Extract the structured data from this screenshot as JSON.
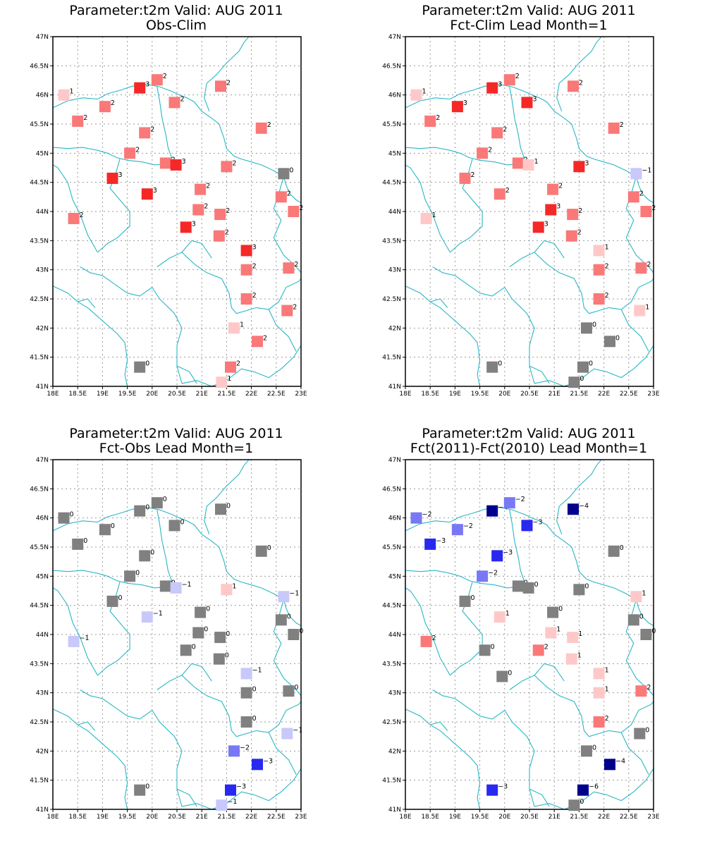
{
  "figure_title_common": "Parameter:t2m Valid: AUG 2011",
  "colors": {
    "neutral": "#808080",
    "coast": "#2ab7c4",
    "gridline": "#9a9a9a",
    "pos1": "#ffc8c8",
    "pos2": "#fa7878",
    "pos3": "#f52828",
    "neg1": "#c8c8fa",
    "neg2": "#7878f5",
    "neg3": "#2828f0",
    "neg4": "#00008c"
  },
  "axes": {
    "lon_ticks": [
      "18E",
      "18.5E",
      "19E",
      "19.5E",
      "20E",
      "20.5E",
      "21E",
      "21.5E",
      "22E",
      "22.5E",
      "23E"
    ],
    "lat_ticks": [
      "41N",
      "41.5N",
      "42N",
      "42.5N",
      "43N",
      "43.5N",
      "44N",
      "44.5N",
      "45N",
      "45.5N",
      "46N",
      "46.5N",
      "47N"
    ],
    "lon_range": [
      18,
      23
    ],
    "lat_range": [
      41,
      47
    ]
  },
  "panels": [
    {
      "title": "Parameter:t2m Valid: AUG 2011",
      "subtitle": "Obs-Clim",
      "stations": [
        {
          "lon": 18.22,
          "lat": 46.0,
          "v": "1"
        },
        {
          "lon": 19.75,
          "lat": 46.12,
          "v": "3"
        },
        {
          "lon": 20.1,
          "lat": 46.26,
          "v": "2"
        },
        {
          "lon": 21.38,
          "lat": 46.15,
          "v": "2"
        },
        {
          "lon": 19.05,
          "lat": 45.8,
          "v": "2"
        },
        {
          "lon": 20.45,
          "lat": 45.87,
          "v": "2"
        },
        {
          "lon": 18.5,
          "lat": 45.55,
          "v": "2"
        },
        {
          "lon": 19.85,
          "lat": 45.35,
          "v": "2"
        },
        {
          "lon": 22.2,
          "lat": 45.43,
          "v": "2"
        },
        {
          "lon": 19.55,
          "lat": 45.0,
          "v": "2"
        },
        {
          "lon": 20.27,
          "lat": 44.83,
          "v": "2"
        },
        {
          "lon": 20.48,
          "lat": 44.8,
          "v": "3"
        },
        {
          "lon": 21.5,
          "lat": 44.77,
          "v": "2"
        },
        {
          "lon": 22.65,
          "lat": 44.65,
          "v": "0"
        },
        {
          "lon": 19.2,
          "lat": 44.57,
          "v": "3"
        },
        {
          "lon": 19.9,
          "lat": 44.3,
          "v": "3"
        },
        {
          "lon": 20.97,
          "lat": 44.38,
          "v": "2"
        },
        {
          "lon": 22.6,
          "lat": 44.25,
          "v": "2"
        },
        {
          "lon": 20.93,
          "lat": 44.03,
          "v": "2"
        },
        {
          "lon": 21.37,
          "lat": 43.95,
          "v": "2"
        },
        {
          "lon": 22.85,
          "lat": 44.0,
          "v": "2"
        },
        {
          "lon": 18.42,
          "lat": 43.88,
          "v": "2"
        },
        {
          "lon": 20.68,
          "lat": 43.73,
          "v": "3"
        },
        {
          "lon": 21.35,
          "lat": 43.58,
          "v": "2"
        },
        {
          "lon": 21.9,
          "lat": 43.33,
          "v": "3"
        },
        {
          "lon": 21.9,
          "lat": 43.0,
          "v": "2"
        },
        {
          "lon": 22.75,
          "lat": 43.03,
          "v": "2"
        },
        {
          "lon": 21.9,
          "lat": 42.5,
          "v": "2"
        },
        {
          "lon": 22.72,
          "lat": 42.3,
          "v": "2"
        },
        {
          "lon": 21.65,
          "lat": 42.0,
          "v": "1"
        },
        {
          "lon": 22.12,
          "lat": 41.77,
          "v": "2"
        },
        {
          "lon": 19.75,
          "lat": 41.33,
          "v": "0"
        },
        {
          "lon": 21.58,
          "lat": 41.33,
          "v": "2"
        },
        {
          "lon": 21.4,
          "lat": 41.07,
          "v": "1"
        }
      ]
    },
    {
      "title": "Parameter:t2m Valid: AUG 2011",
      "subtitle": "Fct-Clim Lead Month=1",
      "stations": [
        {
          "lon": 18.22,
          "lat": 46.0,
          "v": "1"
        },
        {
          "lon": 19.75,
          "lat": 46.12,
          "v": "3"
        },
        {
          "lon": 20.1,
          "lat": 46.26,
          "v": "2"
        },
        {
          "lon": 21.38,
          "lat": 46.15,
          "v": "2"
        },
        {
          "lon": 19.05,
          "lat": 45.8,
          "v": "3"
        },
        {
          "lon": 20.45,
          "lat": 45.87,
          "v": "3"
        },
        {
          "lon": 18.5,
          "lat": 45.55,
          "v": "2"
        },
        {
          "lon": 19.85,
          "lat": 45.35,
          "v": "2"
        },
        {
          "lon": 22.2,
          "lat": 45.43,
          "v": "2"
        },
        {
          "lon": 19.55,
          "lat": 45.0,
          "v": "2"
        },
        {
          "lon": 20.27,
          "lat": 44.83,
          "v": "2"
        },
        {
          "lon": 20.48,
          "lat": 44.8,
          "v": "1"
        },
        {
          "lon": 21.5,
          "lat": 44.77,
          "v": "3"
        },
        {
          "lon": 22.65,
          "lat": 44.65,
          "v": "-1"
        },
        {
          "lon": 19.2,
          "lat": 44.57,
          "v": "2"
        },
        {
          "lon": 19.9,
          "lat": 44.3,
          "v": "2"
        },
        {
          "lon": 20.97,
          "lat": 44.38,
          "v": "2"
        },
        {
          "lon": 22.6,
          "lat": 44.25,
          "v": "2"
        },
        {
          "lon": 20.93,
          "lat": 44.03,
          "v": "3"
        },
        {
          "lon": 21.37,
          "lat": 43.95,
          "v": "2"
        },
        {
          "lon": 22.85,
          "lat": 44.0,
          "v": "2"
        },
        {
          "lon": 18.42,
          "lat": 43.88,
          "v": "1"
        },
        {
          "lon": 20.68,
          "lat": 43.73,
          "v": "3"
        },
        {
          "lon": 21.35,
          "lat": 43.58,
          "v": "2"
        },
        {
          "lon": 21.9,
          "lat": 43.33,
          "v": "1"
        },
        {
          "lon": 21.9,
          "lat": 43.0,
          "v": "2"
        },
        {
          "lon": 22.75,
          "lat": 43.03,
          "v": "2"
        },
        {
          "lon": 21.9,
          "lat": 42.5,
          "v": "2"
        },
        {
          "lon": 22.72,
          "lat": 42.3,
          "v": "1"
        },
        {
          "lon": 21.65,
          "lat": 42.0,
          "v": "0"
        },
        {
          "lon": 22.12,
          "lat": 41.77,
          "v": "0"
        },
        {
          "lon": 19.75,
          "lat": 41.33,
          "v": "0"
        },
        {
          "lon": 21.58,
          "lat": 41.33,
          "v": "0"
        },
        {
          "lon": 21.4,
          "lat": 41.07,
          "v": "0"
        }
      ]
    },
    {
      "title": "Parameter:t2m Valid: AUG 2011",
      "subtitle": "Fct-Obs Lead Month=1",
      "stations": [
        {
          "lon": 18.22,
          "lat": 46.0,
          "v": "0"
        },
        {
          "lon": 19.75,
          "lat": 46.12,
          "v": "0"
        },
        {
          "lon": 20.1,
          "lat": 46.26,
          "v": "0"
        },
        {
          "lon": 21.38,
          "lat": 46.15,
          "v": "0"
        },
        {
          "lon": 19.05,
          "lat": 45.8,
          "v": "0"
        },
        {
          "lon": 20.45,
          "lat": 45.87,
          "v": "0"
        },
        {
          "lon": 18.5,
          "lat": 45.55,
          "v": "0"
        },
        {
          "lon": 19.85,
          "lat": 45.35,
          "v": "0"
        },
        {
          "lon": 22.2,
          "lat": 45.43,
          "v": "0"
        },
        {
          "lon": 19.55,
          "lat": 45.0,
          "v": "0"
        },
        {
          "lon": 20.27,
          "lat": 44.83,
          "v": "0"
        },
        {
          "lon": 20.48,
          "lat": 44.8,
          "v": "-1"
        },
        {
          "lon": 21.5,
          "lat": 44.77,
          "v": "1"
        },
        {
          "lon": 22.65,
          "lat": 44.65,
          "v": "-1"
        },
        {
          "lon": 19.2,
          "lat": 44.57,
          "v": "0"
        },
        {
          "lon": 19.9,
          "lat": 44.3,
          "v": "-1"
        },
        {
          "lon": 20.97,
          "lat": 44.38,
          "v": "0"
        },
        {
          "lon": 22.6,
          "lat": 44.25,
          "v": "0"
        },
        {
          "lon": 20.93,
          "lat": 44.03,
          "v": "0"
        },
        {
          "lon": 21.37,
          "lat": 43.95,
          "v": "0"
        },
        {
          "lon": 22.85,
          "lat": 44.0,
          "v": "0"
        },
        {
          "lon": 18.42,
          "lat": 43.88,
          "v": "-1"
        },
        {
          "lon": 20.68,
          "lat": 43.73,
          "v": "0"
        },
        {
          "lon": 21.35,
          "lat": 43.58,
          "v": "0"
        },
        {
          "lon": 21.9,
          "lat": 43.33,
          "v": "-1"
        },
        {
          "lon": 21.9,
          "lat": 43.0,
          "v": "0"
        },
        {
          "lon": 22.75,
          "lat": 43.03,
          "v": "0"
        },
        {
          "lon": 21.9,
          "lat": 42.5,
          "v": "0"
        },
        {
          "lon": 22.72,
          "lat": 42.3,
          "v": "-1"
        },
        {
          "lon": 21.65,
          "lat": 42.0,
          "v": "-2"
        },
        {
          "lon": 22.12,
          "lat": 41.77,
          "v": "-3"
        },
        {
          "lon": 19.75,
          "lat": 41.33,
          "v": "0"
        },
        {
          "lon": 21.58,
          "lat": 41.33,
          "v": "-3"
        },
        {
          "lon": 21.4,
          "lat": 41.07,
          "v": "-1"
        }
      ]
    },
    {
      "title": "Parameter:t2m Valid: AUG 2011",
      "subtitle": "Fct(2011)-Fct(2010) Lead Month=1",
      "stations": [
        {
          "lon": 18.22,
          "lat": 46.0,
          "v": "-2"
        },
        {
          "lon": 19.75,
          "lat": 46.12,
          "v": "-4"
        },
        {
          "lon": 20.1,
          "lat": 46.26,
          "v": "-2"
        },
        {
          "lon": 21.38,
          "lat": 46.15,
          "v": "-4"
        },
        {
          "lon": 19.05,
          "lat": 45.8,
          "v": "-2"
        },
        {
          "lon": 20.45,
          "lat": 45.87,
          "v": "-3"
        },
        {
          "lon": 18.5,
          "lat": 45.55,
          "v": "-3"
        },
        {
          "lon": 19.85,
          "lat": 45.35,
          "v": "-3"
        },
        {
          "lon": 22.2,
          "lat": 45.43,
          "v": "0"
        },
        {
          "lon": 19.55,
          "lat": 45.0,
          "v": "-2"
        },
        {
          "lon": 20.27,
          "lat": 44.83,
          "v": "0"
        },
        {
          "lon": 20.48,
          "lat": 44.8,
          "v": "0"
        },
        {
          "lon": 21.5,
          "lat": 44.77,
          "v": "0"
        },
        {
          "lon": 22.65,
          "lat": 44.65,
          "v": "1"
        },
        {
          "lon": 19.2,
          "lat": 44.57,
          "v": "0"
        },
        {
          "lon": 19.9,
          "lat": 44.3,
          "v": "1"
        },
        {
          "lon": 20.97,
          "lat": 44.38,
          "v": "0"
        },
        {
          "lon": 22.6,
          "lat": 44.25,
          "v": "0"
        },
        {
          "lon": 20.93,
          "lat": 44.03,
          "v": "1"
        },
        {
          "lon": 21.37,
          "lat": 43.95,
          "v": "1"
        },
        {
          "lon": 22.85,
          "lat": 44.0,
          "v": "0"
        },
        {
          "lon": 18.42,
          "lat": 43.88,
          "v": "2"
        },
        {
          "lon": 20.68,
          "lat": 43.73,
          "v": "2"
        },
        {
          "lon": 21.35,
          "lat": 43.58,
          "v": "1"
        },
        {
          "lon": 19.6,
          "lat": 43.73,
          "v": "0"
        },
        {
          "lon": 19.95,
          "lat": 43.28,
          "v": "0"
        },
        {
          "lon": 21.9,
          "lat": 43.33,
          "v": "1"
        },
        {
          "lon": 21.9,
          "lat": 43.0,
          "v": "1"
        },
        {
          "lon": 22.75,
          "lat": 43.03,
          "v": "2"
        },
        {
          "lon": 21.9,
          "lat": 42.5,
          "v": "2"
        },
        {
          "lon": 22.72,
          "lat": 42.3,
          "v": "0"
        },
        {
          "lon": 21.65,
          "lat": 42.0,
          "v": "0"
        },
        {
          "lon": 22.12,
          "lat": 41.77,
          "v": "-4"
        },
        {
          "lon": 19.75,
          "lat": 41.33,
          "v": "-3"
        },
        {
          "lon": 21.58,
          "lat": 41.33,
          "v": "-6"
        },
        {
          "lon": 21.4,
          "lat": 41.07,
          "v": "0"
        }
      ]
    }
  ]
}
